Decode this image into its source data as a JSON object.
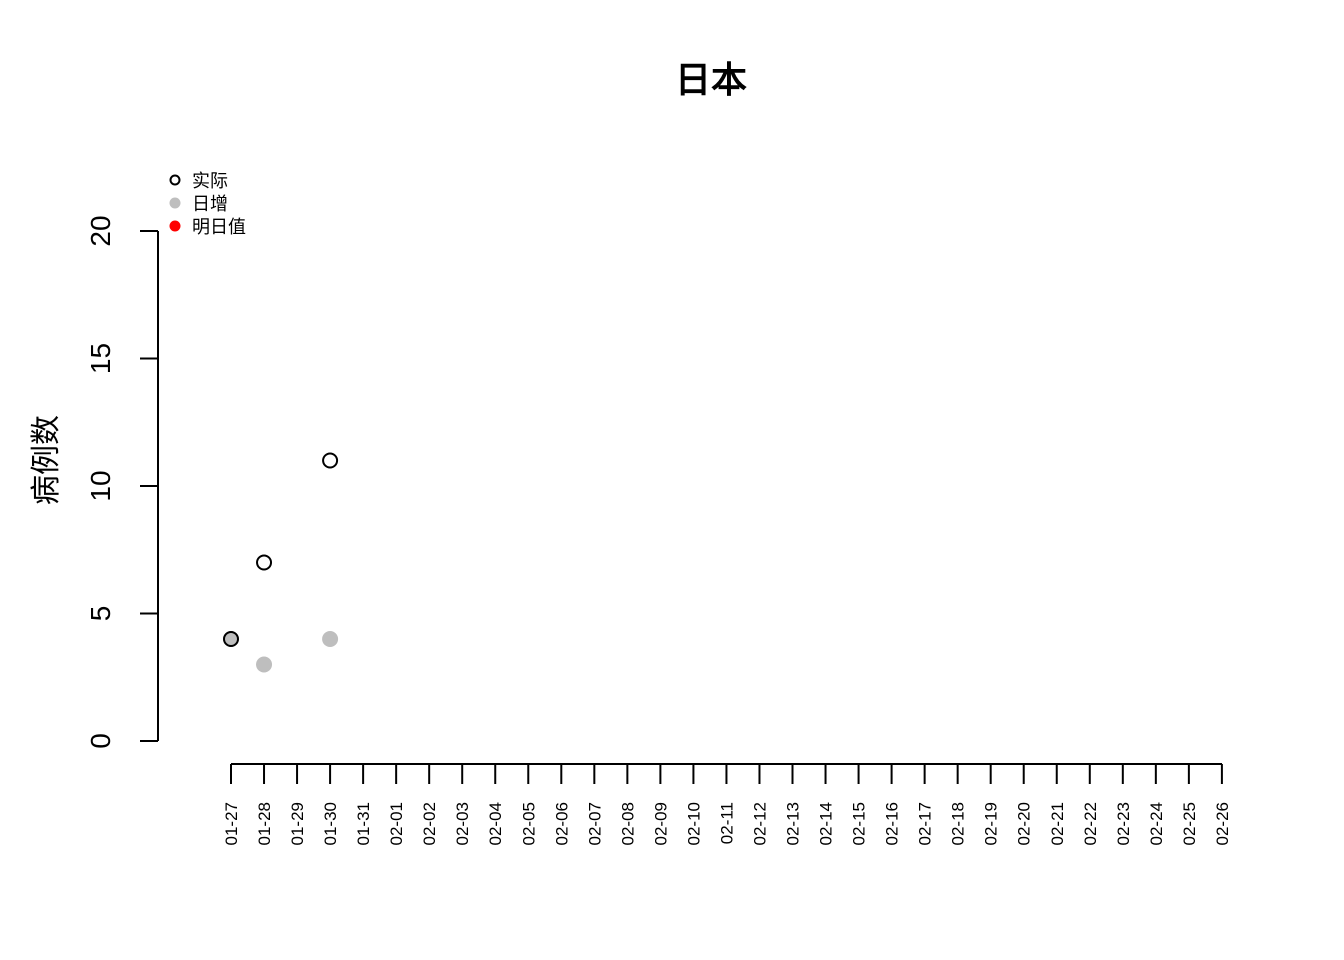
{
  "chart_data": {
    "type": "scatter",
    "title": "日本",
    "ylabel": "病例数",
    "xlabel": "",
    "ylim": [
      0,
      20
    ],
    "yticks": [
      0,
      5,
      10,
      15,
      20
    ],
    "categories": [
      "01-27",
      "01-28",
      "01-29",
      "01-30",
      "01-31",
      "02-01",
      "02-02",
      "02-03",
      "02-04",
      "02-05",
      "02-06",
      "02-07",
      "02-08",
      "02-09",
      "02-10",
      "02-11",
      "02-12",
      "02-13",
      "02-14",
      "02-15",
      "02-16",
      "02-17",
      "02-18",
      "02-19",
      "02-20",
      "02-21",
      "02-22",
      "02-23",
      "02-24",
      "02-25",
      "02-26"
    ],
    "series": [
      {
        "name": "实际",
        "marker": "open-circle",
        "color": "#000000",
        "points": [
          {
            "x": "01-27",
            "y": 4
          },
          {
            "x": "01-28",
            "y": 7
          },
          {
            "x": "01-30",
            "y": 11
          }
        ]
      },
      {
        "name": "日增",
        "marker": "filled-circle",
        "color": "#bebebe",
        "points": [
          {
            "x": "01-27",
            "y": 4
          },
          {
            "x": "01-28",
            "y": 3
          },
          {
            "x": "01-30",
            "y": 4
          }
        ]
      },
      {
        "name": "明日值",
        "marker": "filled-circle",
        "color": "#ff0000",
        "points": []
      }
    ],
    "legend_position": "top-left",
    "grid": false
  }
}
